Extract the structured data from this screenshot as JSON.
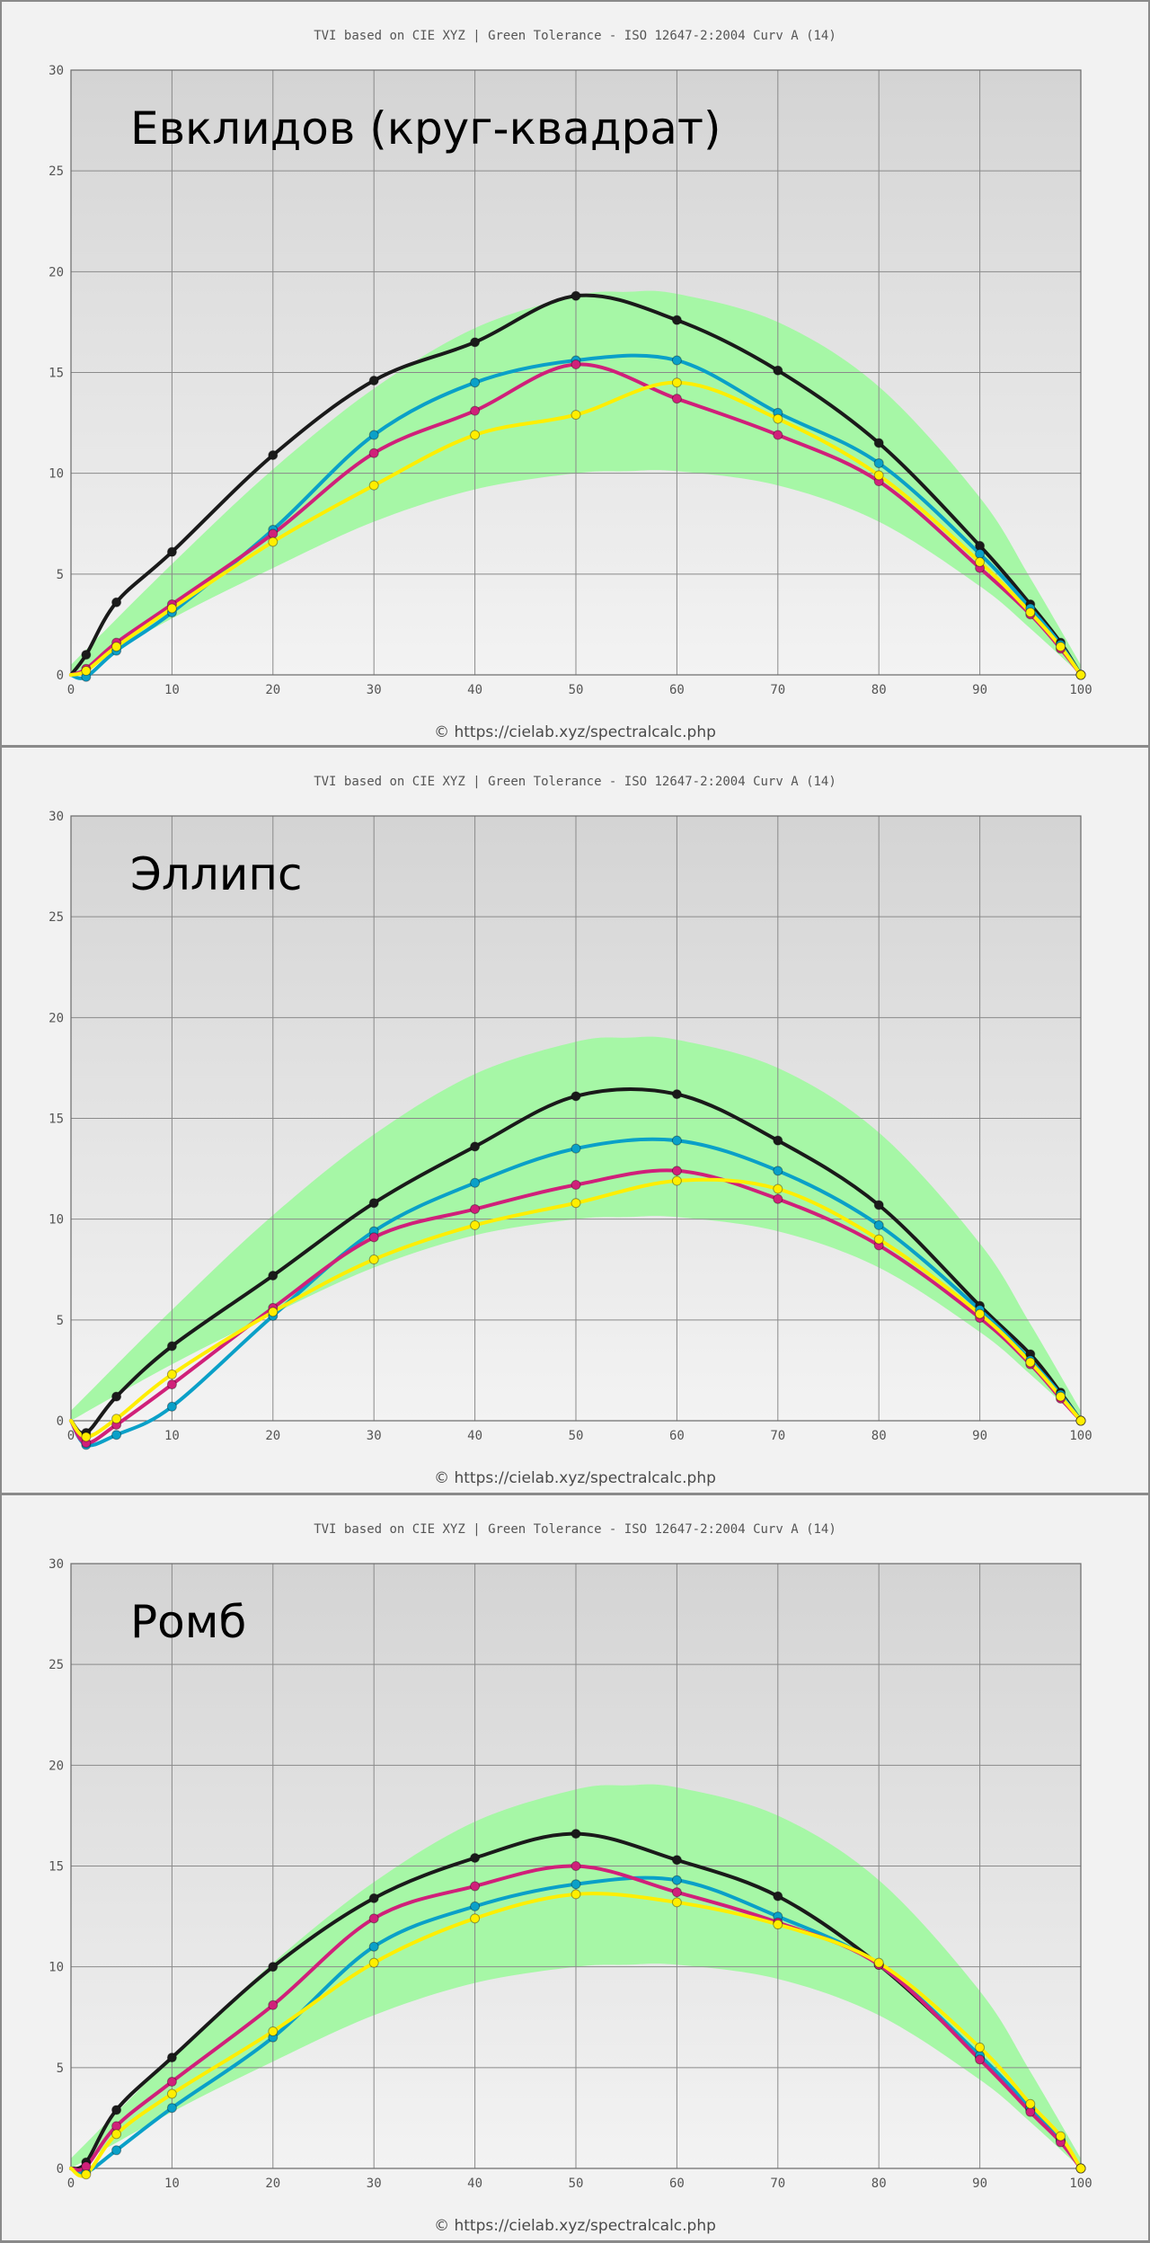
{
  "chart_data": [
    {
      "type": "line",
      "title": "TVI based on CIE XYZ  |  Green Tolerance - ISO 12647-2:2004 Curv A (14)",
      "annotation": "Евклидов (круг-квадрат)",
      "watermark": "© https://cielab.xyz/spectralcalc.php",
      "xlim": [
        0,
        100
      ],
      "ylim": [
        0,
        30
      ],
      "xticks": [
        0,
        10,
        20,
        30,
        40,
        50,
        60,
        70,
        80,
        90,
        100
      ],
      "yticks": [
        0,
        5,
        10,
        15,
        20,
        25,
        30
      ],
      "grid": true,
      "tolerance_band": {
        "color": "#a6f7a6",
        "x": [
          0,
          10,
          20,
          30,
          40,
          50,
          55,
          60,
          70,
          80,
          90,
          95,
          100
        ],
        "upper": [
          0.5,
          5.5,
          10.2,
          14.2,
          17.2,
          18.8,
          19.0,
          18.9,
          17.5,
          14.3,
          8.8,
          4.8,
          0.5
        ],
        "lower": [
          0,
          2.8,
          5.3,
          7.6,
          9.2,
          10.0,
          10.1,
          10.1,
          9.4,
          7.6,
          4.4,
          2.3,
          0
        ]
      },
      "series": [
        {
          "color": "#1a1a1a",
          "x": [
            0,
            1.5,
            4.5,
            10,
            20,
            30,
            40,
            50,
            60,
            70,
            80,
            90,
            95,
            98,
            100
          ],
          "y": [
            0,
            1.0,
            3.6,
            6.1,
            10.9,
            14.6,
            16.5,
            18.8,
            17.6,
            15.1,
            11.5,
            6.4,
            3.5,
            1.6,
            0
          ]
        },
        {
          "color": "#0aa0c8",
          "x": [
            0,
            1.5,
            4.5,
            10,
            20,
            30,
            40,
            50,
            60,
            70,
            80,
            90,
            95,
            98,
            100
          ],
          "y": [
            0,
            -0.1,
            1.2,
            3.1,
            7.2,
            11.9,
            14.5,
            15.6,
            15.6,
            13.0,
            10.5,
            6.0,
            3.3,
            1.5,
            0
          ]
        },
        {
          "color": "#d0207a",
          "x": [
            0,
            1.5,
            4.5,
            10,
            20,
            30,
            40,
            50,
            60,
            70,
            80,
            90,
            95,
            98,
            100
          ],
          "y": [
            0,
            0.3,
            1.6,
            3.5,
            7.0,
            11.0,
            13.1,
            15.4,
            13.7,
            11.9,
            9.6,
            5.3,
            3.0,
            1.3,
            0
          ]
        },
        {
          "color": "#ffee00",
          "x": [
            0,
            1.5,
            4.5,
            10,
            20,
            30,
            40,
            50,
            60,
            70,
            80,
            90,
            95,
            98,
            100
          ],
          "y": [
            0,
            0.2,
            1.4,
            3.3,
            6.6,
            9.4,
            11.9,
            12.9,
            14.5,
            12.7,
            9.9,
            5.6,
            3.1,
            1.4,
            0
          ]
        }
      ]
    },
    {
      "type": "line",
      "title": "TVI based on CIE XYZ  |  Green Tolerance - ISO 12647-2:2004 Curv A (14)",
      "annotation": "Эллипс",
      "watermark": "© https://cielab.xyz/spectralcalc.php",
      "xlim": [
        0,
        100
      ],
      "ylim": [
        0,
        30
      ],
      "xticks": [
        0,
        10,
        20,
        30,
        40,
        50,
        60,
        70,
        80,
        90,
        100
      ],
      "yticks": [
        0,
        5,
        10,
        15,
        20,
        25,
        30
      ],
      "grid": true,
      "tolerance_band": {
        "color": "#a6f7a6",
        "x": [
          0,
          10,
          20,
          30,
          40,
          50,
          55,
          60,
          70,
          80,
          90,
          95,
          100
        ],
        "upper": [
          0.5,
          5.5,
          10.2,
          14.2,
          17.2,
          18.8,
          19.0,
          18.9,
          17.5,
          14.3,
          8.8,
          4.8,
          0.5
        ],
        "lower": [
          0,
          2.8,
          5.3,
          7.6,
          9.2,
          10.0,
          10.1,
          10.1,
          9.4,
          7.6,
          4.4,
          2.3,
          0
        ]
      },
      "series": [
        {
          "color": "#1a1a1a",
          "x": [
            0,
            1.5,
            4.5,
            10,
            20,
            30,
            40,
            50,
            60,
            70,
            80,
            90,
            95,
            98,
            100
          ],
          "y": [
            0,
            -0.6,
            1.2,
            3.7,
            7.2,
            10.8,
            13.6,
            16.1,
            16.2,
            13.9,
            10.7,
            5.7,
            3.3,
            1.4,
            0
          ]
        },
        {
          "color": "#0aa0c8",
          "x": [
            0,
            1.5,
            4.5,
            10,
            20,
            30,
            40,
            50,
            60,
            70,
            80,
            90,
            95,
            98,
            100
          ],
          "y": [
            0,
            -1.2,
            -0.7,
            0.7,
            5.2,
            9.4,
            11.8,
            13.5,
            13.9,
            12.4,
            9.7,
            5.5,
            3.0,
            1.3,
            0
          ]
        },
        {
          "color": "#d0207a",
          "x": [
            0,
            1.5,
            4.5,
            10,
            20,
            30,
            40,
            50,
            60,
            70,
            80,
            90,
            95,
            98,
            100
          ],
          "y": [
            0,
            -1.1,
            -0.2,
            1.8,
            5.6,
            9.1,
            10.5,
            11.7,
            12.4,
            11.0,
            8.7,
            5.1,
            2.8,
            1.1,
            0
          ]
        },
        {
          "color": "#ffee00",
          "x": [
            0,
            1.5,
            4.5,
            10,
            20,
            30,
            40,
            50,
            60,
            70,
            80,
            90,
            95,
            98,
            100
          ],
          "y": [
            0,
            -0.8,
            0.1,
            2.3,
            5.4,
            8.0,
            9.7,
            10.8,
            11.9,
            11.5,
            9.0,
            5.3,
            2.9,
            1.2,
            0
          ]
        }
      ]
    },
    {
      "type": "line",
      "title": "TVI based on CIE XYZ  |  Green Tolerance - ISO 12647-2:2004 Curv A (14)",
      "annotation": "Ромб",
      "watermark": "© https://cielab.xyz/spectralcalc.php",
      "xlim": [
        0,
        100
      ],
      "ylim": [
        0,
        30
      ],
      "xticks": [
        0,
        10,
        20,
        30,
        40,
        50,
        60,
        70,
        80,
        90,
        100
      ],
      "yticks": [
        0,
        5,
        10,
        15,
        20,
        25,
        30
      ],
      "grid": true,
      "tolerance_band": {
        "color": "#a6f7a6",
        "x": [
          0,
          10,
          20,
          30,
          40,
          50,
          55,
          60,
          70,
          80,
          90,
          95,
          100
        ],
        "upper": [
          0.5,
          5.5,
          10.2,
          14.2,
          17.2,
          18.8,
          19.0,
          18.9,
          17.5,
          14.3,
          8.8,
          4.8,
          0.5
        ],
        "lower": [
          0,
          2.8,
          5.3,
          7.6,
          9.2,
          10.0,
          10.1,
          10.1,
          9.4,
          7.6,
          4.4,
          2.3,
          0
        ]
      },
      "series": [
        {
          "color": "#1a1a1a",
          "x": [
            0,
            1.5,
            4.5,
            10,
            20,
            30,
            40,
            50,
            60,
            70,
            80,
            90,
            95,
            98,
            100
          ],
          "y": [
            0,
            0.3,
            2.9,
            5.5,
            10.0,
            13.4,
            15.4,
            16.6,
            15.3,
            13.5,
            10.1,
            5.5,
            2.9,
            1.4,
            0
          ]
        },
        {
          "color": "#0aa0c8",
          "x": [
            0,
            1.5,
            4.5,
            10,
            20,
            30,
            40,
            50,
            60,
            70,
            80,
            90,
            95,
            98,
            100
          ],
          "y": [
            0,
            -0.2,
            0.9,
            3.0,
            6.5,
            11.0,
            13.0,
            14.1,
            14.3,
            12.5,
            10.1,
            5.6,
            3.0,
            1.4,
            0
          ]
        },
        {
          "color": "#d0207a",
          "x": [
            0,
            1.5,
            4.5,
            10,
            20,
            30,
            40,
            50,
            60,
            70,
            80,
            90,
            95,
            98,
            100
          ],
          "y": [
            0,
            0.1,
            2.1,
            4.3,
            8.1,
            12.4,
            14.0,
            15.0,
            13.7,
            12.2,
            10.1,
            5.4,
            2.8,
            1.3,
            0
          ]
        },
        {
          "color": "#ffee00",
          "x": [
            0,
            1.5,
            4.5,
            10,
            20,
            30,
            40,
            50,
            60,
            70,
            80,
            90,
            95,
            98,
            100
          ],
          "y": [
            0,
            -0.3,
            1.7,
            3.7,
            6.8,
            10.2,
            12.4,
            13.6,
            13.2,
            12.1,
            10.2,
            6.0,
            3.2,
            1.6,
            0
          ]
        }
      ]
    }
  ]
}
